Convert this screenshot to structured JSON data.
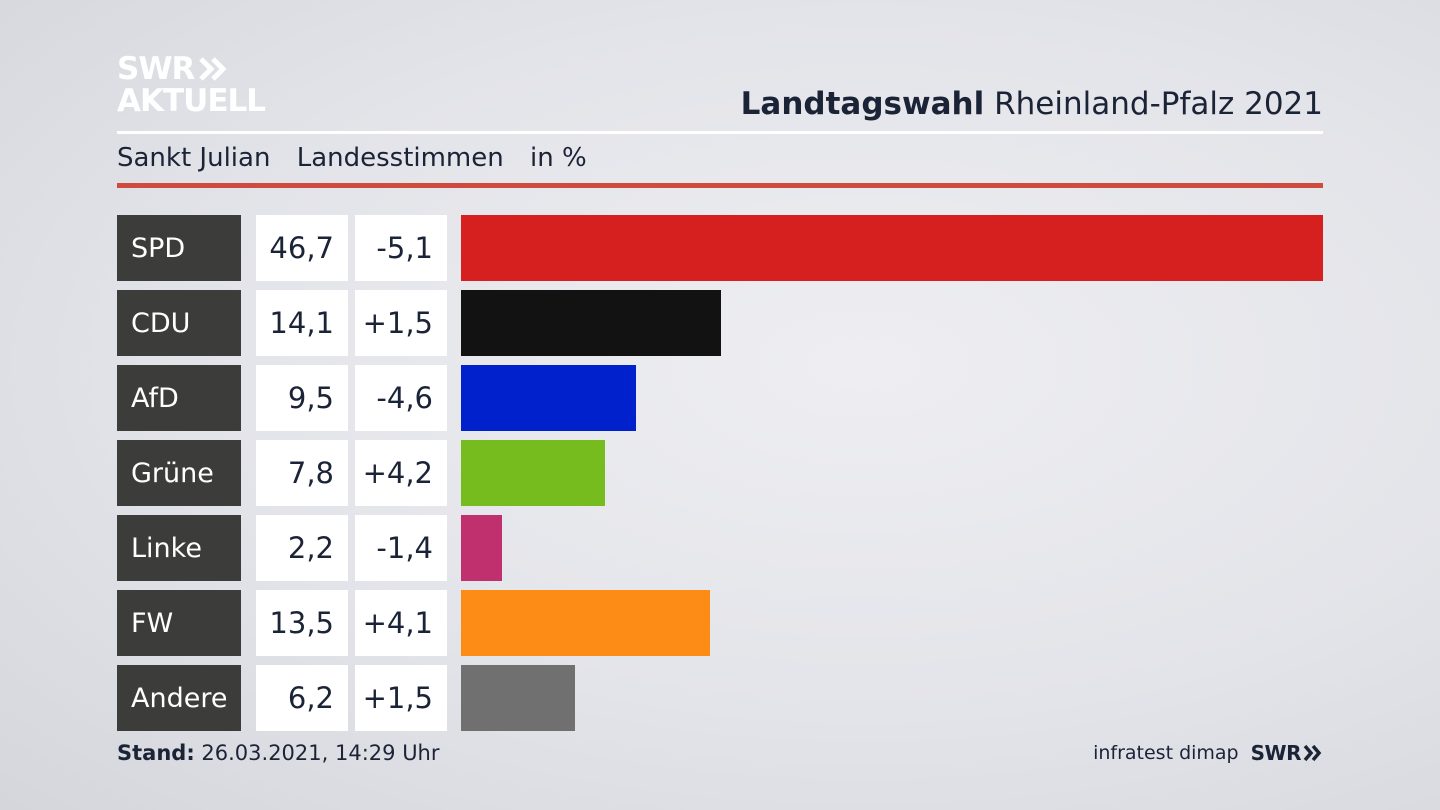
{
  "logo": {
    "line1": "SWR",
    "line2": "AKTUELL"
  },
  "header": {
    "title_bold": "Landtagswahl",
    "title_rest": "Rheinland-Pfalz 2021"
  },
  "subheader": {
    "place": "Sankt Julian",
    "measure": "Landesstimmen",
    "unit": "in %"
  },
  "colors": {
    "accent_rule": "#cf4b3d",
    "label_bg": "#3c3c3a"
  },
  "chart_data": {
    "type": "bar",
    "orientation": "horizontal",
    "categories": [
      "SPD",
      "CDU",
      "AfD",
      "Grüne",
      "Linke",
      "FW",
      "Andere"
    ],
    "values": [
      46.7,
      14.1,
      9.5,
      7.8,
      2.2,
      13.5,
      6.2
    ],
    "values_label": [
      "46,7",
      "14,1",
      "9,5",
      "7,8",
      "2,2",
      "13,5",
      "6,2"
    ],
    "diffs": [
      -5.1,
      1.5,
      -4.6,
      4.2,
      -1.4,
      4.1,
      1.5
    ],
    "diffs_label": [
      "-5,1",
      "+1,5",
      "-4,6",
      "+4,2",
      "-1,4",
      "+4,1",
      "+1,5"
    ],
    "bar_colors": [
      "#d61f1f",
      "#121212",
      "#0021cc",
      "#77bc1f",
      "#c0306e",
      "#fd8c16",
      "#707071"
    ],
    "xlim": [
      0,
      46.7
    ]
  },
  "footer": {
    "stand_label": "Stand:",
    "stand_value": "26.03.2021, 14:29 Uhr",
    "source": "infratest dimap",
    "brand": "SWR"
  }
}
